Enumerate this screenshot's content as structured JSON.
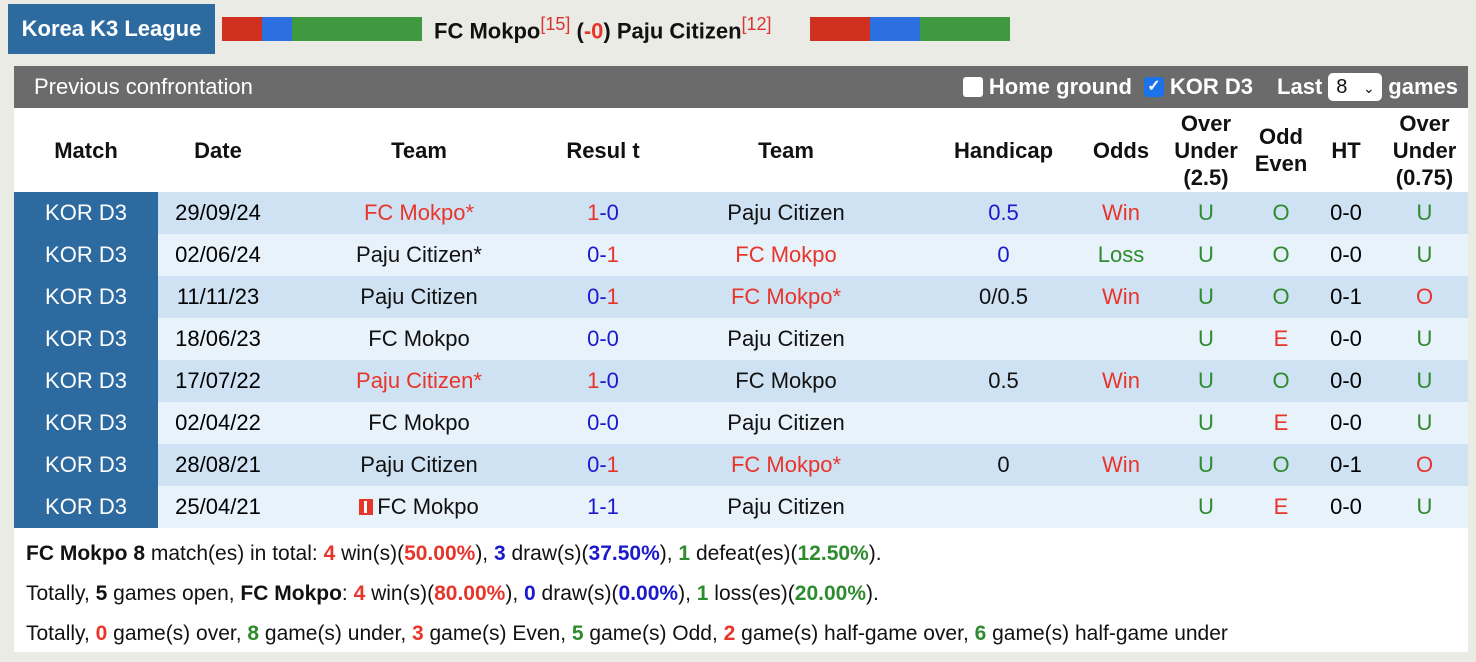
{
  "header": {
    "league": "Korea K3 League",
    "home": "FC Mokpo",
    "home_rank": "[15]",
    "handicap_prefix": "(",
    "handicap": "-0",
    "handicap_suffix": ")",
    "away": "Paju Citizen",
    "away_rank": "[12]",
    "form_colors": [
      "#d0301f",
      "#2b6fe0",
      "#3f9a3f"
    ]
  },
  "panel": {
    "title": "Previous confrontation",
    "home_ground": "Home ground",
    "home_ground_checked": false,
    "league_filter": "KOR D3",
    "league_checked": true,
    "last_label": "Last",
    "last_value": "8",
    "games_label": "games"
  },
  "columns": [
    "Match",
    "Date",
    "Team",
    "Resul t",
    "Team",
    "Handicap",
    "Odds",
    "Over Under (2.5)",
    "Odd Even",
    "HT",
    "Over Under (0.75)"
  ],
  "rows": [
    {
      "match": "KOR D3",
      "date": "29/09/24",
      "home": "FC Mokpo*",
      "home_color": "red",
      "hs": "1",
      "hs_color": "red",
      "as": "0",
      "as_color": "blue",
      "away": "Paju Citizen",
      "away_color": "black",
      "hcp": "0.5",
      "hcp_color": "blue",
      "odds": "Win",
      "odds_color": "red",
      "ou": "U",
      "ou_color": "green",
      "oe": "O",
      "oe_color": "green",
      "ht": "0-0",
      "ou2": "U",
      "ou2_color": "green"
    },
    {
      "match": "KOR D3",
      "date": "02/06/24",
      "home": "Paju Citizen*",
      "home_color": "black",
      "hs": "0",
      "hs_color": "blue",
      "as": "1",
      "as_color": "red",
      "away": "FC Mokpo",
      "away_color": "red",
      "hcp": "0",
      "hcp_color": "blue",
      "odds": "Loss",
      "odds_color": "green",
      "ou": "U",
      "ou_color": "green",
      "oe": "O",
      "oe_color": "green",
      "ht": "0-0",
      "ou2": "U",
      "ou2_color": "green"
    },
    {
      "match": "KOR D3",
      "date": "11/11/23",
      "home": "Paju Citizen",
      "home_color": "black",
      "hs": "0",
      "hs_color": "blue",
      "as": "1",
      "as_color": "red",
      "away": "FC Mokpo*",
      "away_color": "red",
      "hcp": "0/0.5",
      "hcp_color": "black",
      "odds": "Win",
      "odds_color": "red",
      "ou": "U",
      "ou_color": "green",
      "oe": "O",
      "oe_color": "green",
      "ht": "0-1",
      "ou2": "O",
      "ou2_color": "red"
    },
    {
      "match": "KOR D3",
      "date": "18/06/23",
      "home": "FC Mokpo",
      "home_color": "black",
      "hs": "0",
      "hs_color": "blue",
      "as": "0",
      "as_color": "blue",
      "away": "Paju Citizen",
      "away_color": "black",
      "hcp": "",
      "hcp_color": "black",
      "odds": "",
      "odds_color": "black",
      "ou": "U",
      "ou_color": "green",
      "oe": "E",
      "oe_color": "red",
      "ht": "0-0",
      "ou2": "U",
      "ou2_color": "green"
    },
    {
      "match": "KOR D3",
      "date": "17/07/22",
      "home": "Paju Citizen*",
      "home_color": "red",
      "hs": "1",
      "hs_color": "red",
      "as": "0",
      "as_color": "blue",
      "away": "FC Mokpo",
      "away_color": "black",
      "hcp": "0.5",
      "hcp_color": "black",
      "odds": "Win",
      "odds_color": "red",
      "ou": "U",
      "ou_color": "green",
      "oe": "O",
      "oe_color": "green",
      "ht": "0-0",
      "ou2": "U",
      "ou2_color": "green"
    },
    {
      "match": "KOR D3",
      "date": "02/04/22",
      "home": "FC Mokpo",
      "home_color": "black",
      "hs": "0",
      "hs_color": "blue",
      "as": "0",
      "as_color": "blue",
      "away": "Paju Citizen",
      "away_color": "black",
      "hcp": "",
      "hcp_color": "black",
      "odds": "",
      "odds_color": "black",
      "ou": "U",
      "ou_color": "green",
      "oe": "E",
      "oe_color": "red",
      "ht": "0-0",
      "ou2": "U",
      "ou2_color": "green"
    },
    {
      "match": "KOR D3",
      "date": "28/08/21",
      "home": "Paju Citizen",
      "home_color": "black",
      "hs": "0",
      "hs_color": "blue",
      "as": "1",
      "as_color": "red",
      "away": "FC Mokpo*",
      "away_color": "red",
      "hcp": "0",
      "hcp_color": "black",
      "odds": "Win",
      "odds_color": "red",
      "ou": "U",
      "ou_color": "green",
      "oe": "O",
      "oe_color": "green",
      "ht": "0-1",
      "ou2": "O",
      "ou2_color": "red"
    },
    {
      "match": "KOR D3",
      "date": "25/04/21",
      "home": "FC Mokpo",
      "home_color": "black",
      "home_flag": true,
      "hs": "1",
      "hs_color": "blue",
      "as": "1",
      "as_color": "blue",
      "away": "Paju Citizen",
      "away_color": "black",
      "hcp": "",
      "hcp_color": "black",
      "odds": "",
      "odds_color": "black",
      "ou": "U",
      "ou_color": "green",
      "oe": "E",
      "oe_color": "red",
      "ht": "0-0",
      "ou2": "U",
      "ou2_color": "green"
    }
  ],
  "summary": {
    "l1": [
      [
        "FC Mokpo 8",
        "b"
      ],
      [
        " match(es) in total: ",
        ""
      ],
      [
        "4",
        "red b"
      ],
      [
        " win(s)(",
        ""
      ],
      [
        "50.00%",
        "red b"
      ],
      [
        "), ",
        ""
      ],
      [
        "3",
        "blue b"
      ],
      [
        " draw(s)(",
        ""
      ],
      [
        "37.50%",
        "blue b"
      ],
      [
        "), ",
        ""
      ],
      [
        "1",
        "green b"
      ],
      [
        " defeat(es)(",
        ""
      ],
      [
        "12.50%",
        "green b"
      ],
      [
        ").",
        ""
      ]
    ],
    "l2": [
      [
        "Totally, ",
        ""
      ],
      [
        "5",
        "b"
      ],
      [
        " games open, ",
        ""
      ],
      [
        "FC Mokpo",
        "b"
      ],
      [
        ": ",
        ""
      ],
      [
        "4",
        "red b"
      ],
      [
        " win(s)(",
        ""
      ],
      [
        "80.00%",
        "red b"
      ],
      [
        "), ",
        ""
      ],
      [
        "0",
        "blue b"
      ],
      [
        " draw(s)(",
        ""
      ],
      [
        "0.00%",
        "blue b"
      ],
      [
        "), ",
        ""
      ],
      [
        "1",
        "green b"
      ],
      [
        " loss(es)(",
        ""
      ],
      [
        "20.00%",
        "green b"
      ],
      [
        ").",
        ""
      ]
    ],
    "l3": [
      [
        "Totally, ",
        ""
      ],
      [
        "0",
        "red b"
      ],
      [
        " game(s) over, ",
        ""
      ],
      [
        "8",
        "green b"
      ],
      [
        " game(s) under, ",
        ""
      ],
      [
        "3",
        "red b"
      ],
      [
        " game(s) Even, ",
        ""
      ],
      [
        "5",
        "green b"
      ],
      [
        " game(s) Odd, ",
        ""
      ],
      [
        "2",
        "red b"
      ],
      [
        " game(s) half-game over, ",
        ""
      ],
      [
        "6",
        "green b"
      ],
      [
        " game(s) half-game under",
        ""
      ]
    ]
  }
}
